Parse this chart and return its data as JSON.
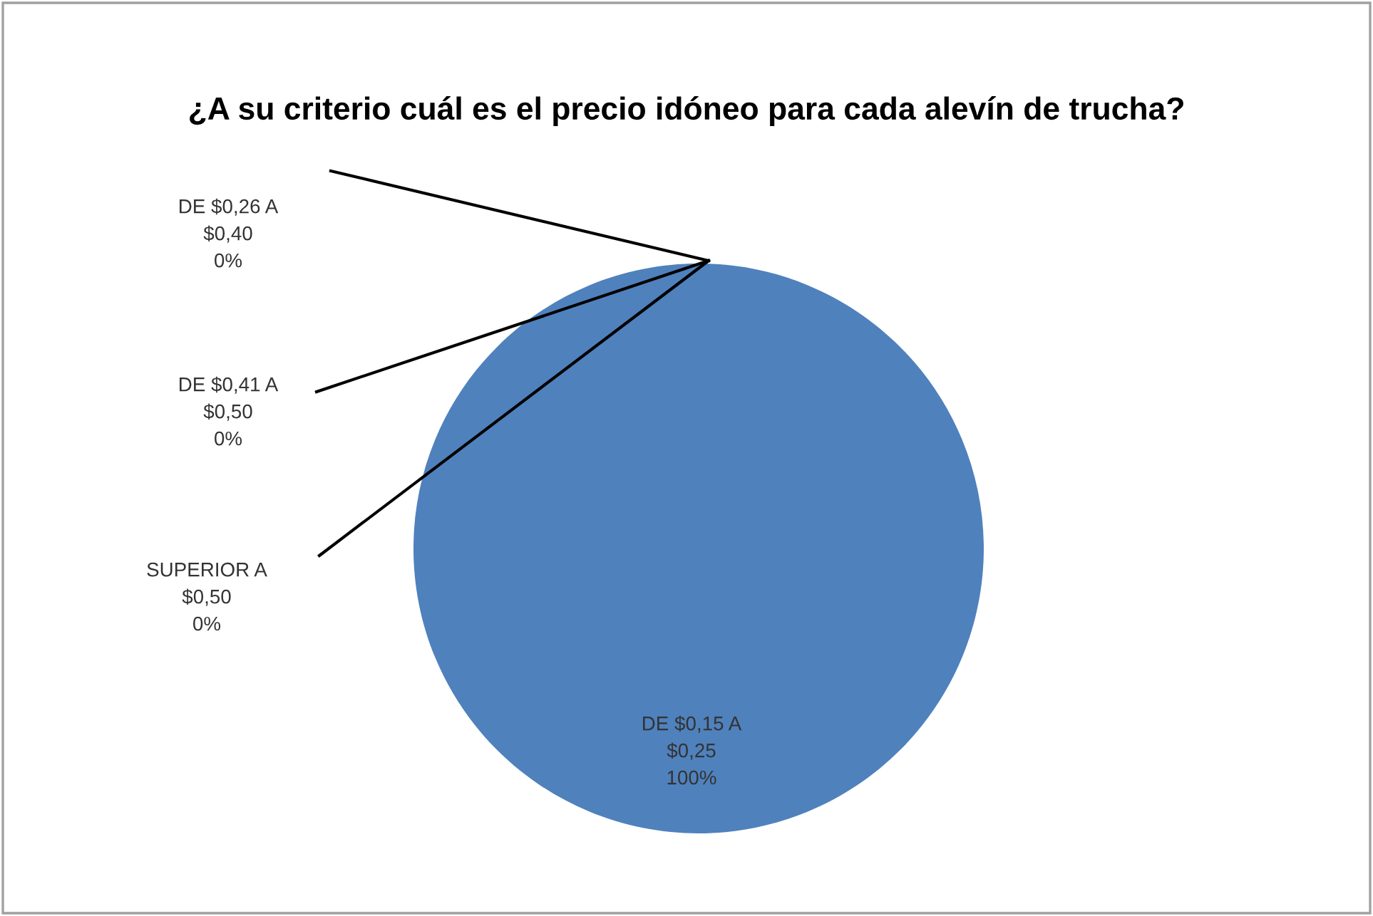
{
  "chart_data": {
    "type": "pie",
    "title": "¿A su criterio cuál es el precio idóneo para cada alevín de trucha?",
    "categories": [
      "DE $0,15 A\n$0,25",
      "DE $0,26 A\n$0,40",
      "DE $0,41 A\n$0,50",
      "SUPERIOR A\n$0,50"
    ],
    "values": [
      100,
      0,
      0,
      0
    ],
    "value_labels": [
      "100%",
      "0%",
      "0%",
      "0%"
    ],
    "colors": [
      "#4f81bd",
      "#c0504d",
      "#9bbb59",
      "#8064a2"
    ],
    "legend": false
  }
}
